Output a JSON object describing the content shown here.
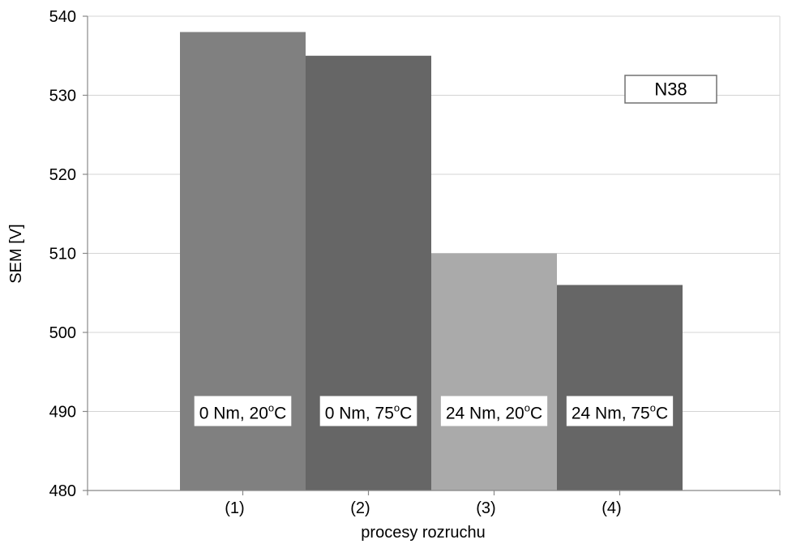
{
  "chart_data": {
    "type": "bar",
    "categories": [
      "(1)",
      "(2)",
      "(3)",
      "(4)"
    ],
    "values": [
      538,
      535,
      510,
      506
    ],
    "bar_colors": [
      "#808080",
      "#666666",
      "#aaaaaa",
      "#666666"
    ],
    "data_labels": [
      {
        "before": "0 Nm, 20",
        "sup": "o",
        "after": "C"
      },
      {
        "before": "0 Nm, 75",
        "sup": "o",
        "after": "C"
      },
      {
        "before": "24 Nm, 20",
        "sup": "o",
        "after": "C"
      },
      {
        "before": "24 Nm, 75",
        "sup": "o",
        "after": "C"
      }
    ],
    "data_label_value": 490,
    "annotation": "N38",
    "xlabel": "procesy rozruchu",
    "ylabel": "SEM [V]",
    "ylim": [
      480,
      540
    ],
    "yticks": [
      480,
      490,
      500,
      510,
      520,
      530,
      540
    ],
    "grid": true,
    "legend": "none"
  }
}
